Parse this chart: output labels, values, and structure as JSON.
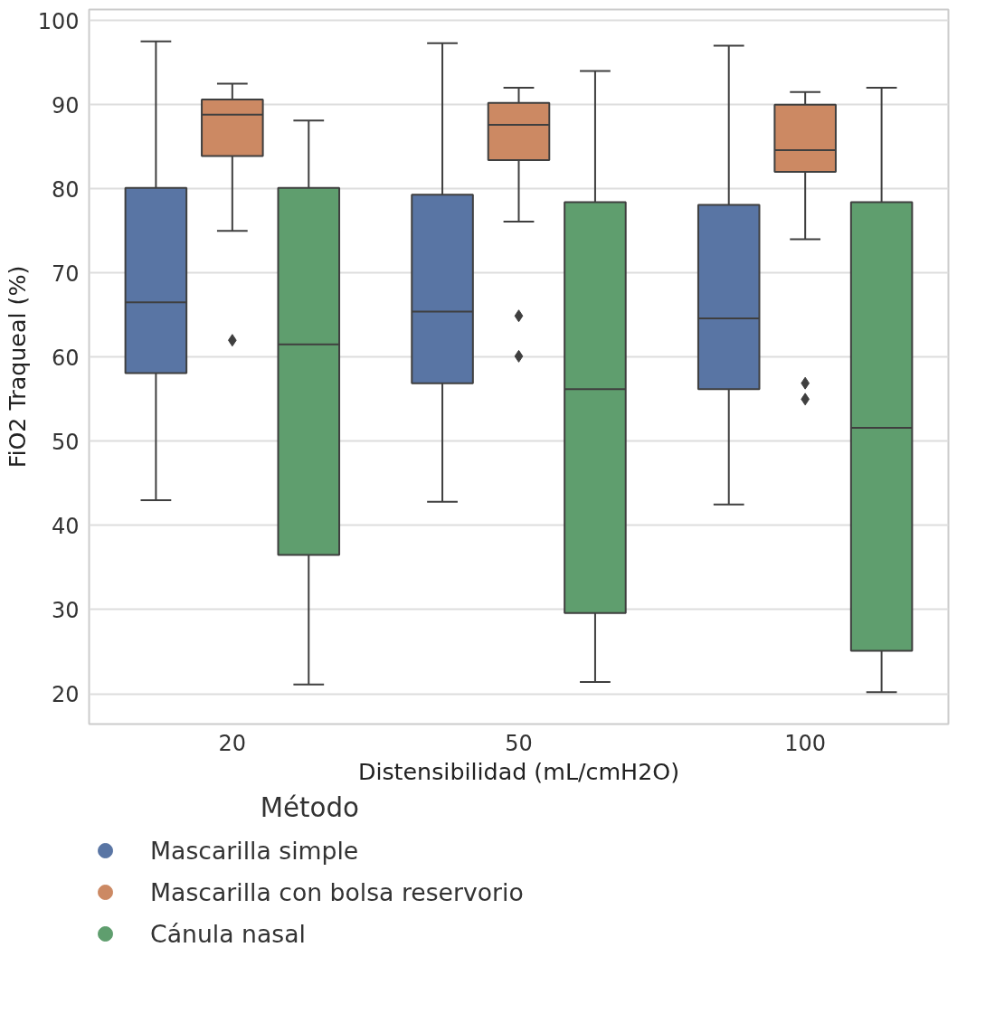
{
  "chart_data": {
    "type": "box",
    "xlabel": "Distensibilidad (mL/cmH2O)",
    "ylabel": "FiO2 Traqueal (%)",
    "legend_title": "Método",
    "categories": [
      "20",
      "50",
      "100"
    ],
    "ylim": [
      16.4,
      101.3
    ],
    "yticks": [
      20,
      30,
      40,
      50,
      60,
      70,
      80,
      90,
      100
    ],
    "grid": "y",
    "legend": "bottom",
    "marker": "circle",
    "series": [
      {
        "name": "Mascarilla simple",
        "color": "#5975a4",
        "boxes": [
          {
            "low": 43.0,
            "q1": 58.1,
            "median": 66.5,
            "q3": 80.1,
            "high": 97.5
          },
          {
            "low": 42.8,
            "q1": 56.9,
            "median": 65.4,
            "q3": 79.3,
            "high": 97.3
          },
          {
            "low": 42.5,
            "q1": 56.2,
            "median": 64.6,
            "q3": 78.1,
            "high": 97.0
          }
        ]
      },
      {
        "name": "Mascarilla con bolsa reservorio",
        "color": "#cc8963",
        "boxes": [
          {
            "low": 75.0,
            "q1": 83.9,
            "median": 88.8,
            "q3": 90.6,
            "high": 92.5,
            "outliers": [
              62.0
            ]
          },
          {
            "low": 76.1,
            "q1": 83.4,
            "median": 87.6,
            "q3": 90.2,
            "high": 92.0,
            "outliers": [
              64.9,
              60.1
            ]
          },
          {
            "low": 74.0,
            "q1": 82.0,
            "median": 84.6,
            "q3": 90.0,
            "high": 91.5,
            "outliers": [
              56.9,
              55.0
            ]
          }
        ]
      },
      {
        "name": "Cánula nasal",
        "color": "#5f9e6e",
        "boxes": [
          {
            "low": 21.1,
            "q1": 36.5,
            "median": 61.5,
            "q3": 80.1,
            "high": 88.1
          },
          {
            "low": 21.4,
            "q1": 29.6,
            "median": 56.2,
            "q3": 78.4,
            "high": 94.0
          },
          {
            "low": 20.2,
            "q1": 25.1,
            "median": 51.6,
            "q3": 78.4,
            "high": 92.0
          }
        ]
      }
    ]
  }
}
